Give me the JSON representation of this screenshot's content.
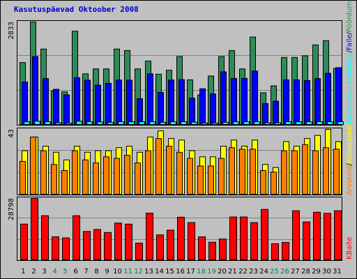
{
  "title": "Kasutuspäevad Oktoober 2008",
  "colors": {
    "background": "#c0c0c0",
    "title": "#0000cc",
    "pages": "#2e8b57",
    "hits": "#0000ff",
    "files": "#00ffff",
    "visits": "#ff7f00",
    "sites": "#ffff00",
    "kbytes": "#ff0000",
    "weekend_label": "#00805c",
    "weekday_label": "#000000"
  },
  "legend": {
    "top": [
      "Pöördumisi",
      "Faile",
      "Külastatud lehekülgi"
    ],
    "top_sep": "/",
    "middle": [
      "Külastajaid",
      "Arvuteid"
    ],
    "middle_sep": "/",
    "bottom": [
      "KBaite"
    ]
  },
  "chart_data": [
    {
      "type": "bar",
      "panel": "top",
      "ymax_label": "2833",
      "ylim": [
        0,
        2833
      ],
      "categories": [
        "1",
        "2",
        "3",
        "4",
        "5",
        "6",
        "7",
        "8",
        "9",
        "10",
        "11",
        "12",
        "13",
        "14",
        "15",
        "16",
        "17",
        "18",
        "19",
        "20",
        "21",
        "22",
        "23",
        "24",
        "25",
        "26",
        "27",
        "28",
        "29",
        "30",
        "31"
      ],
      "weekend_days": [
        "4",
        "5",
        "11",
        "12",
        "18",
        "19",
        "25",
        "26"
      ],
      "series": [
        {
          "name": "Pöördumisi",
          "values": [
            1720,
            2833,
            2090,
            940,
            915,
            2580,
            1410,
            1545,
            1545,
            2090,
            2050,
            1545,
            1760,
            1400,
            1510,
            1885,
            1245,
            830,
            1350,
            1885,
            2050,
            1545,
            2420,
            890,
            1080,
            1860,
            1860,
            1905,
            2205,
            2320,
            1560
          ]
        },
        {
          "name": "Faile",
          "values": [
            1185,
            1885,
            1280,
            985,
            835,
            1305,
            1235,
            1100,
            1150,
            1240,
            1236,
            730,
            1410,
            900,
            1240,
            1250,
            740,
            1000,
            860,
            1465,
            1285,
            1285,
            1485,
            595,
            660,
            1245,
            1245,
            1225,
            1280,
            1425,
            1580
          ]
        },
        {
          "name": "Külastatud lehekülgi",
          "values": [
            95,
            110,
            95,
            65,
            55,
            110,
            95,
            90,
            80,
            95,
            95,
            95,
            95,
            80,
            95,
            95,
            85,
            60,
            60,
            80,
            95,
            95,
            95,
            65,
            65,
            95,
            95,
            95,
            95,
            95,
            95
          ]
        }
      ]
    },
    {
      "type": "bar",
      "panel": "middle",
      "ymax_label": "43",
      "ylim": [
        0,
        43
      ],
      "categories": [
        "1",
        "2",
        "3",
        "4",
        "5",
        "6",
        "7",
        "8",
        "9",
        "10",
        "11",
        "12",
        "13",
        "14",
        "15",
        "16",
        "17",
        "18",
        "19",
        "20",
        "21",
        "22",
        "23",
        "24",
        "25",
        "26",
        "27",
        "28",
        "29",
        "30",
        "31"
      ],
      "series": [
        {
          "name": "Külastajaid",
          "values": [
            29,
            38,
            32,
            28,
            23,
            32,
            28,
            29,
            29,
            31,
            32,
            28,
            38,
            42,
            37,
            36,
            29,
            25,
            25,
            32,
            36,
            32,
            36,
            20,
            18,
            35,
            32,
            37,
            39,
            43,
            35
          ]
        },
        {
          "name": "Arvuteid",
          "values": [
            22,
            38,
            29,
            20,
            16,
            29,
            23,
            21,
            25,
            24,
            26,
            21,
            29,
            37,
            32,
            28,
            24,
            19,
            19,
            24,
            31,
            30,
            30,
            16,
            15,
            29,
            29,
            33,
            29,
            31,
            30
          ]
        }
      ]
    },
    {
      "type": "bar",
      "panel": "bottom",
      "ymax_label": "28798",
      "ylim": [
        0,
        28798
      ],
      "categories": [
        "1",
        "2",
        "3",
        "4",
        "5",
        "6",
        "7",
        "8",
        "9",
        "10",
        "11",
        "12",
        "13",
        "14",
        "15",
        "16",
        "17",
        "18",
        "19",
        "20",
        "21",
        "22",
        "23",
        "24",
        "25",
        "26",
        "27",
        "28",
        "29",
        "30",
        "31"
      ],
      "series": [
        {
          "name": "KBaite",
          "values": [
            16900,
            28798,
            20800,
            11000,
            10500,
            20800,
            13500,
            14400,
            13000,
            17400,
            16900,
            8100,
            22000,
            11900,
            14100,
            20100,
            17600,
            11000,
            8500,
            10000,
            20200,
            20200,
            17600,
            23700,
            7800,
            8400,
            23100,
            17900,
            22400,
            21900,
            23100
          ]
        }
      ]
    }
  ]
}
